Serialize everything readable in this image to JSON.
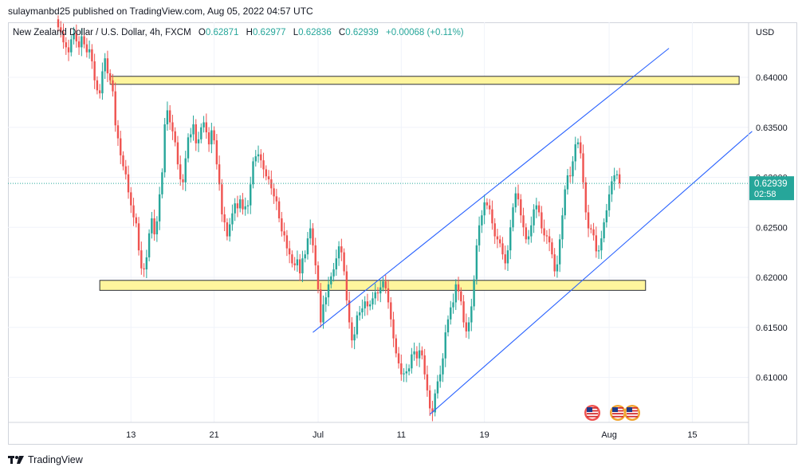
{
  "header": {
    "publisher_text": "sulaymanbd25 published on TradingView.com, Aug 05, 2022 04:57 UTC"
  },
  "legend": {
    "symbol": "New Zealand Dollar / U.S. Dollar, 4h, FXCM",
    "open_label": "O",
    "open": "0.62871",
    "high_label": "H",
    "high": "0.62977",
    "low_label": "L",
    "low": "0.62836",
    "close_label": "C",
    "close": "0.62939",
    "change": "+0.00068 (+0.11%)"
  },
  "axis": {
    "currency": "USD"
  },
  "price_tag": {
    "price": "0.62939",
    "countdown": "02:58"
  },
  "footer": {
    "brand": "TradingView"
  },
  "colors": {
    "up": "#26a69a",
    "down": "#ef5350",
    "zone_fill": "#fff59d",
    "channel": "#2962ff",
    "price_tag": "#26a69a"
  },
  "icons": [
    "us-flag-event-icon",
    "us-flag-event-icon",
    "us-flag-event-icon"
  ],
  "chart_data": {
    "type": "candlestick",
    "ylim": [
      0.6055,
      0.6455
    ],
    "y_ticks": [
      0.61,
      0.615,
      0.62,
      0.625,
      0.63,
      0.635,
      0.64
    ],
    "y_tick_labels": [
      "0.61000",
      "0.61500",
      "0.62000",
      "0.62500",
      "0.63000",
      "0.63500",
      "0.64000"
    ],
    "x_ticks": [
      {
        "label": "13",
        "t": 28
      },
      {
        "label": "21",
        "t": 60
      },
      {
        "label": "Jul",
        "t": 100
      },
      {
        "label": "11",
        "t": 132
      },
      {
        "label": "19",
        "t": 164
      },
      {
        "label": "Aug",
        "t": 212
      },
      {
        "label": "15",
        "t": 244
      }
    ],
    "series": [
      {
        "t_start": 0,
        "close": [
          0.645,
          0.6445,
          0.6435,
          0.643,
          0.6425,
          0.6438,
          0.6444,
          0.6436,
          0.643,
          0.6441,
          0.6433,
          0.6425,
          0.6428,
          0.6416,
          0.6397,
          0.6387,
          0.6384,
          0.6406,
          0.6419,
          0.6404,
          0.6397,
          0.6386,
          0.6352,
          0.6339,
          0.6322,
          0.6311,
          0.6303,
          0.6285,
          0.6272,
          0.626,
          0.6254,
          0.6227,
          0.6209,
          0.6208,
          0.622,
          0.6244,
          0.6259,
          0.6243,
          0.6256,
          0.6283,
          0.6305,
          0.6353,
          0.6367,
          0.6355,
          0.6346,
          0.6335,
          0.6313,
          0.6298,
          0.6295,
          0.6319,
          0.634,
          0.6343,
          0.6353,
          0.6334,
          0.6338,
          0.635,
          0.6355,
          0.6345,
          0.6333,
          0.6347,
          0.6337,
          0.6313,
          0.6293,
          0.6263,
          0.6255,
          0.6241,
          0.6253,
          0.6264,
          0.6274,
          0.6269,
          0.6278,
          0.6268,
          0.6271,
          0.6272,
          0.6293,
          0.6316,
          0.6321,
          0.6323,
          0.6317,
          0.6308,
          0.6301,
          0.6298,
          0.6289,
          0.6281,
          0.6276,
          0.6259,
          0.6246,
          0.6242,
          0.6229,
          0.6223,
          0.6214,
          0.6212,
          0.6218,
          0.6204,
          0.6219,
          0.6223,
          0.6239,
          0.6249,
          0.6232,
          0.6212,
          0.6188,
          0.6155,
          0.6173,
          0.618,
          0.6193,
          0.6201,
          0.6208,
          0.6219,
          0.6231,
          0.6225,
          0.6206,
          0.6177,
          0.6155,
          0.6137,
          0.6143,
          0.6162,
          0.6165,
          0.6169,
          0.6176,
          0.6171,
          0.6173,
          0.6179,
          0.6185,
          0.6184,
          0.619,
          0.6196,
          0.6189,
          0.6175,
          0.6158,
          0.6139,
          0.6124,
          0.6114,
          0.6103,
          0.6104,
          0.6106,
          0.6109,
          0.6123,
          0.6126,
          0.6119,
          0.6127,
          0.6122,
          0.6103,
          0.6087,
          0.6069,
          0.6065,
          0.6084,
          0.6096,
          0.6103,
          0.6119,
          0.6145,
          0.6158,
          0.617,
          0.6175,
          0.6193,
          0.6186,
          0.6176,
          0.6155,
          0.6146,
          0.6155,
          0.6171,
          0.6198,
          0.6232,
          0.6252,
          0.6262,
          0.6275,
          0.6272,
          0.6268,
          0.6254,
          0.6241,
          0.6238,
          0.6234,
          0.6223,
          0.6214,
          0.6227,
          0.625,
          0.627,
          0.6284,
          0.6278,
          0.6262,
          0.625,
          0.6238,
          0.6241,
          0.6252,
          0.6268,
          0.6272,
          0.6265,
          0.6249,
          0.6242,
          0.6241,
          0.6235,
          0.6223,
          0.6206,
          0.6213,
          0.6238,
          0.6262,
          0.6288,
          0.6302,
          0.6301,
          0.6316,
          0.6333,
          0.6335,
          0.6324,
          0.6295,
          0.6265,
          0.6249,
          0.6248,
          0.6242,
          0.6226,
          0.6227,
          0.6239,
          0.6255,
          0.6267,
          0.6283,
          0.6296,
          0.6302,
          0.6303,
          0.6294
        ]
      }
    ],
    "zones": [
      {
        "t_start": 20,
        "t_end": 262,
        "low": 0.6393,
        "high": 0.6401
      },
      {
        "t_start": 16,
        "t_end": 226,
        "low": 0.6187,
        "high": 0.6197
      }
    ],
    "channel_lines": [
      {
        "t1": 98,
        "p1": 0.6145,
        "t2": 235,
        "p2": 0.6429
      },
      {
        "t1": 143,
        "p1": 0.6063,
        "t2": 267,
        "p2": 0.6346
      }
    ],
    "last_price": 0.62939
  }
}
